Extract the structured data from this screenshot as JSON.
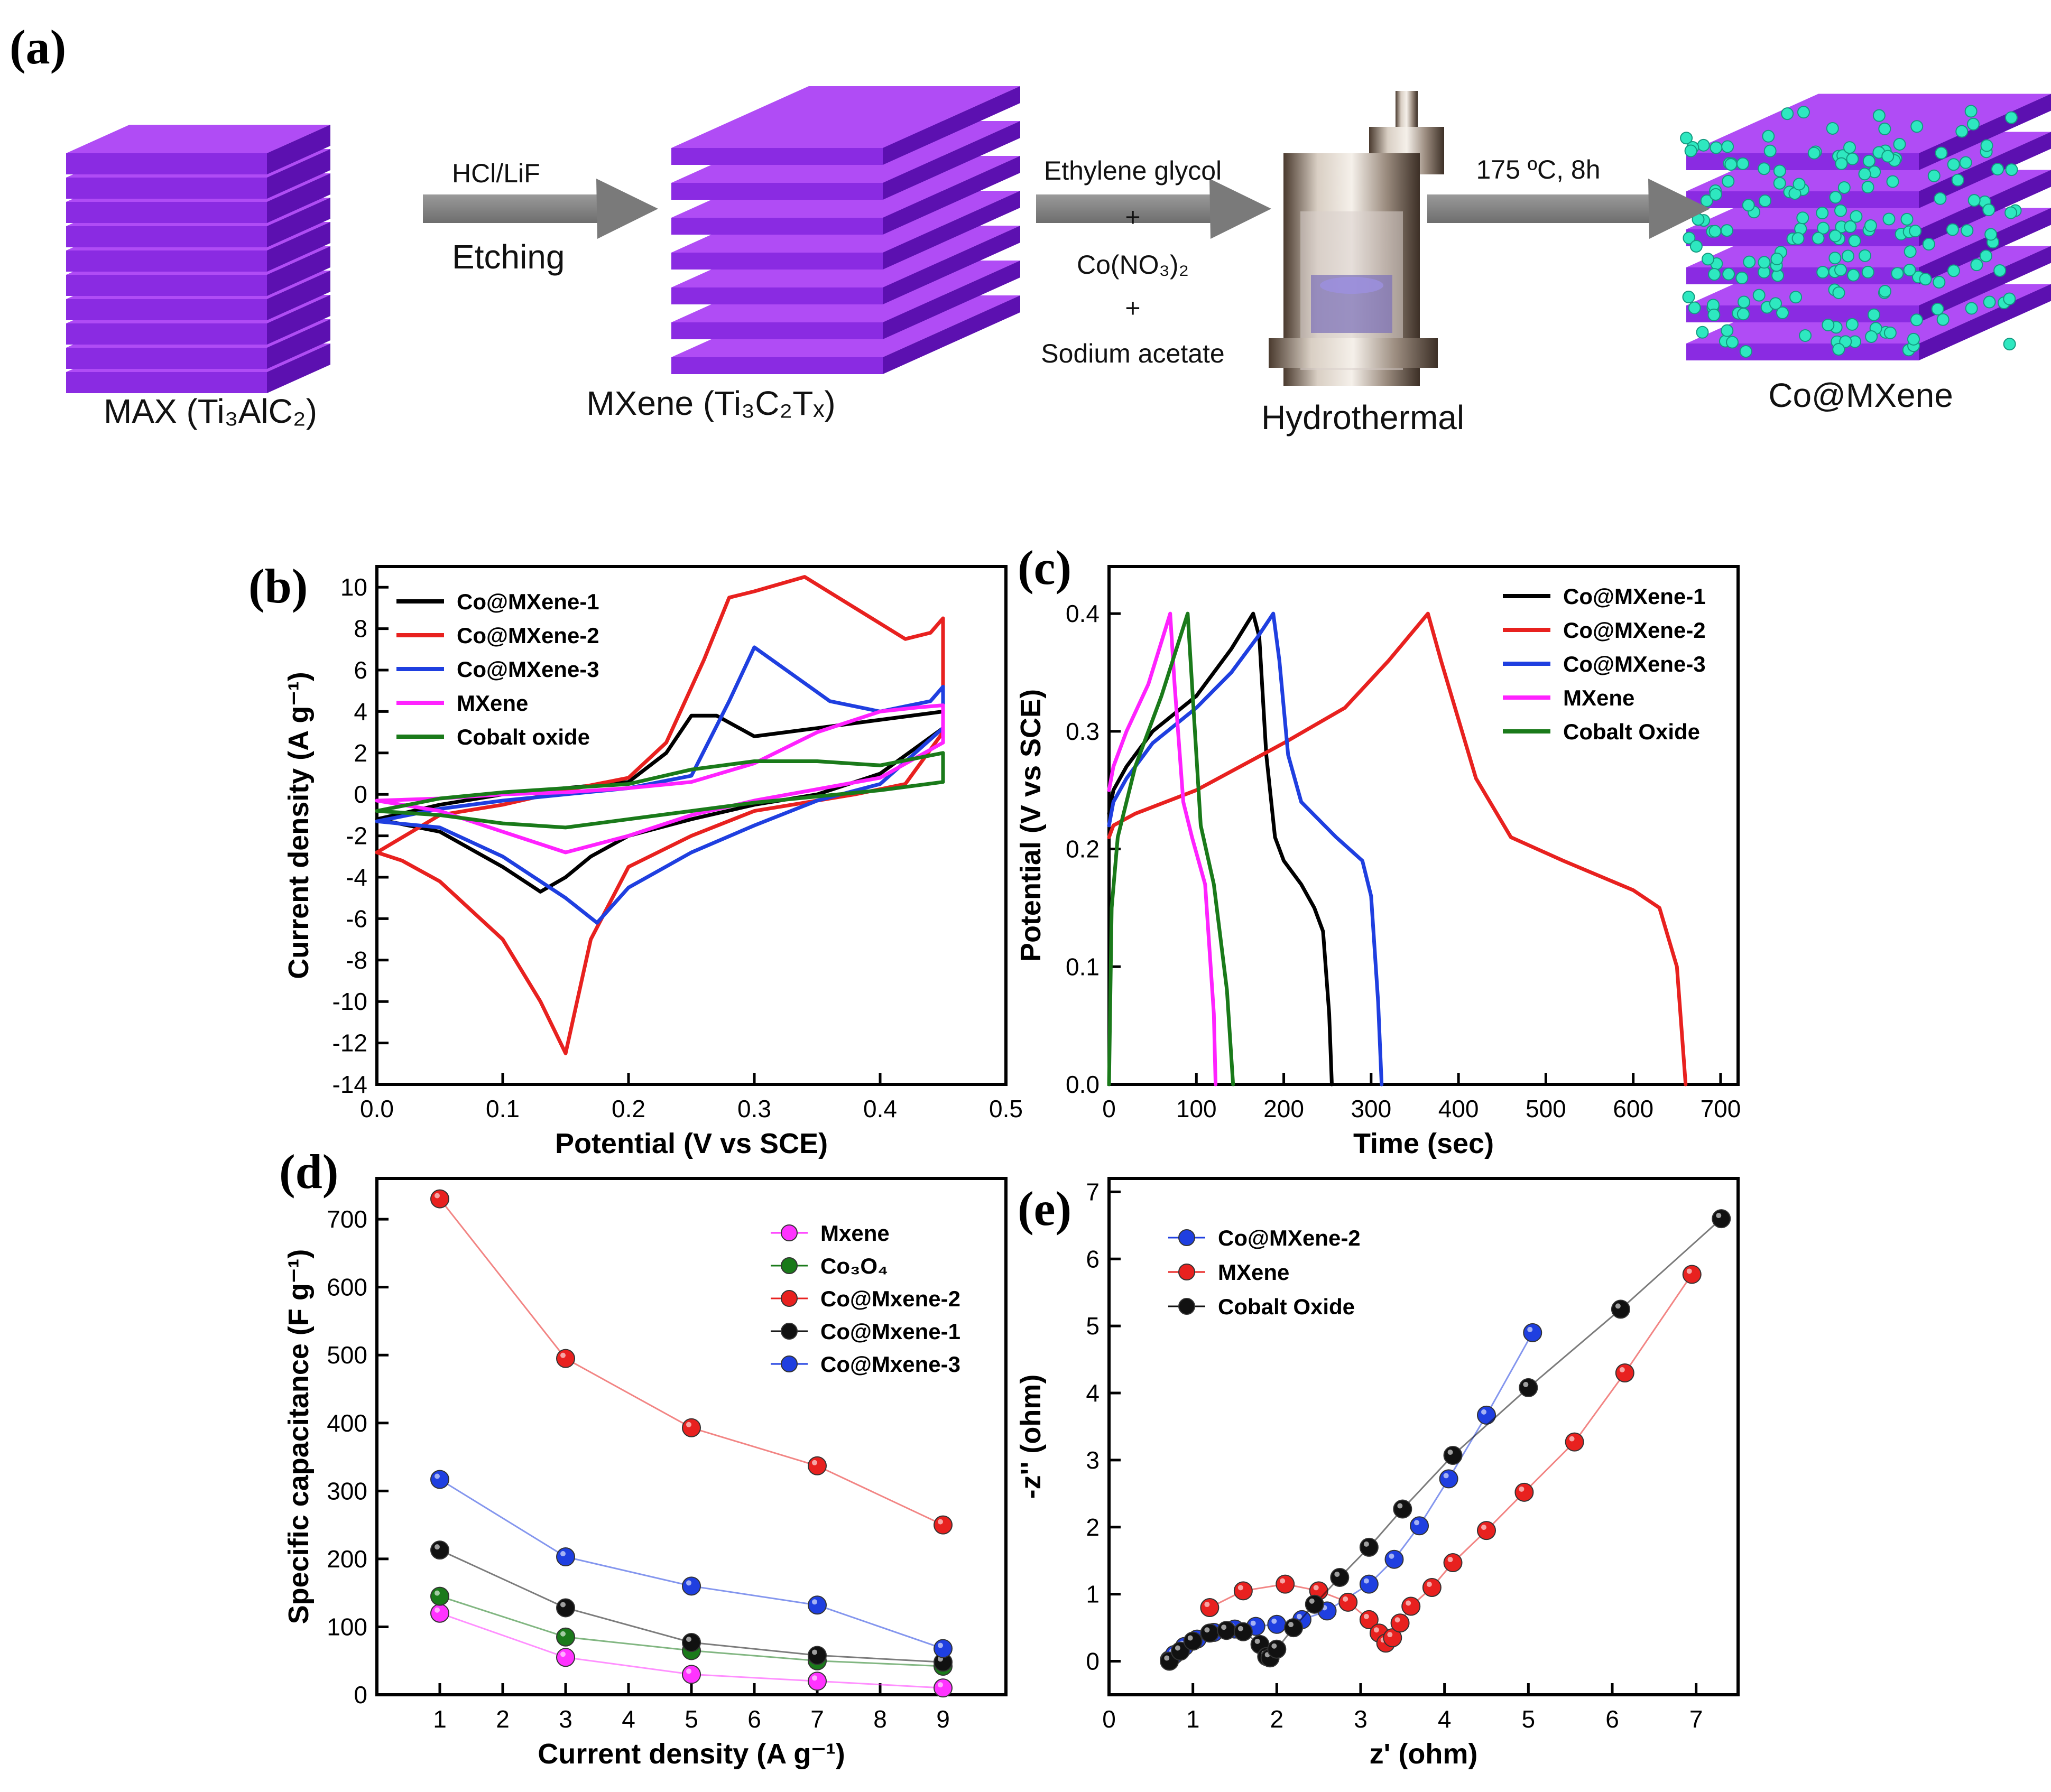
{
  "scheme": {
    "panel_label": "(a)",
    "stages": {
      "max": "MAX (Ti₃AlC₂)",
      "mxene": "MXene (Ti₃C₂Tₓ)",
      "hydro": "Hydrothermal",
      "product": "Co@MXene"
    },
    "arrow1": {
      "top": "HCl/LiF",
      "bottom": "Etching"
    },
    "arrow2": {
      "line1": "Ethylene glycol",
      "plus1": "+",
      "line2": "Co(NO₃)₂",
      "plus2": "+",
      "line3": "Sodium acetate"
    },
    "arrow3": {
      "top": "175 ºC, 8h"
    },
    "colors": {
      "mxene": "#8a2be2",
      "mxene_dark": "#5c10b0",
      "particle": "#2ee8c0",
      "arrow": "#808080"
    }
  },
  "chart_data": [
    {
      "panel": "(b)",
      "type": "line",
      "xlabel": "Potential (V vs SCE)",
      "ylabel": "Current density (A g⁻¹)",
      "xlim": [
        0.0,
        0.5
      ],
      "ylim": [
        -14,
        11
      ],
      "xticks": [
        "0.0",
        "0.1",
        "0.2",
        "0.3",
        "0.4",
        "0.5"
      ],
      "yticks": [
        "-14",
        "-12",
        "-10",
        "-8",
        "-6",
        "-4",
        "-2",
        "0",
        "2",
        "4",
        "6",
        "8",
        "10"
      ],
      "legend_position": "top-left",
      "series": [
        {
          "name": "Co@MXene-1",
          "color": "#000000",
          "x": [
            0.0,
            0.05,
            0.1,
            0.15,
            0.2,
            0.23,
            0.25,
            0.27,
            0.3,
            0.35,
            0.4,
            0.45,
            0.45,
            0.4,
            0.35,
            0.3,
            0.25,
            0.2,
            0.17,
            0.15,
            0.13,
            0.1,
            0.05,
            0.0
          ],
          "y": [
            -1.2,
            -0.5,
            0.0,
            0.3,
            0.6,
            2.0,
            3.8,
            3.8,
            2.8,
            3.2,
            3.6,
            4.0,
            3.2,
            1.0,
            0.0,
            -0.5,
            -1.2,
            -2.0,
            -3.0,
            -4.0,
            -4.7,
            -3.5,
            -1.8,
            -1.2
          ]
        },
        {
          "name": "Co@MXene-2",
          "color": "#e8211f",
          "x": [
            0.0,
            0.05,
            0.1,
            0.15,
            0.2,
            0.23,
            0.26,
            0.28,
            0.3,
            0.34,
            0.38,
            0.42,
            0.44,
            0.45,
            0.45,
            0.42,
            0.38,
            0.3,
            0.25,
            0.2,
            0.17,
            0.15,
            0.13,
            0.1,
            0.05,
            0.02,
            0.0
          ],
          "y": [
            -2.8,
            -1.0,
            -0.5,
            0.2,
            0.8,
            2.5,
            6.5,
            9.5,
            9.8,
            10.5,
            9.0,
            7.5,
            7.8,
            8.5,
            3.0,
            0.5,
            0.0,
            -0.8,
            -2.0,
            -3.5,
            -7.0,
            -12.5,
            -10.0,
            -7.0,
            -4.2,
            -3.2,
            -2.8
          ]
        },
        {
          "name": "Co@MXene-3",
          "color": "#1f3fe0",
          "x": [
            0.0,
            0.05,
            0.1,
            0.15,
            0.2,
            0.25,
            0.28,
            0.3,
            0.33,
            0.36,
            0.4,
            0.44,
            0.45,
            0.45,
            0.4,
            0.35,
            0.3,
            0.25,
            0.2,
            0.175,
            0.15,
            0.1,
            0.05,
            0.0
          ],
          "y": [
            -1.3,
            -0.7,
            -0.3,
            0.0,
            0.3,
            0.9,
            4.5,
            7.1,
            5.8,
            4.5,
            4.0,
            4.5,
            5.2,
            3.2,
            0.5,
            -0.3,
            -1.5,
            -2.8,
            -4.5,
            -6.2,
            -5.0,
            -3.0,
            -1.6,
            -1.3
          ]
        },
        {
          "name": "MXene",
          "color": "#ff22ff",
          "x": [
            0.0,
            0.05,
            0.1,
            0.15,
            0.2,
            0.25,
            0.3,
            0.35,
            0.4,
            0.43,
            0.45,
            0.45,
            0.4,
            0.3,
            0.25,
            0.2,
            0.15,
            0.1,
            0.05,
            0.0
          ],
          "y": [
            -0.3,
            -0.2,
            0.0,
            0.1,
            0.3,
            0.6,
            1.5,
            3.0,
            4.0,
            4.2,
            4.3,
            2.5,
            0.8,
            -0.3,
            -1.0,
            -2.0,
            -2.8,
            -1.8,
            -0.8,
            -0.3
          ]
        },
        {
          "name": "Cobalt oxide",
          "color": "#1a7a1a",
          "x": [
            0.0,
            0.05,
            0.1,
            0.15,
            0.2,
            0.25,
            0.3,
            0.35,
            0.4,
            0.45,
            0.45,
            0.4,
            0.3,
            0.25,
            0.2,
            0.15,
            0.1,
            0.05,
            0.0
          ],
          "y": [
            -0.8,
            -0.2,
            0.1,
            0.3,
            0.5,
            1.2,
            1.6,
            1.6,
            1.4,
            2.0,
            0.6,
            0.2,
            -0.4,
            -0.8,
            -1.2,
            -1.6,
            -1.4,
            -1.0,
            -0.8
          ]
        }
      ]
    },
    {
      "panel": "(c)",
      "type": "line",
      "xlabel": "Time (sec)",
      "ylabel": "Potential (V vs SCE)",
      "xlim": [
        0,
        720
      ],
      "ylim": [
        0.0,
        0.44
      ],
      "xticks": [
        "0",
        "100",
        "200",
        "300",
        "400",
        "500",
        "600",
        "700"
      ],
      "yticks": [
        "0.0",
        "0.1",
        "0.2",
        "0.3",
        "0.4"
      ],
      "legend_position": "top-right",
      "series": [
        {
          "name": "Co@MXene-1",
          "color": "#000000",
          "x": [
            0,
            5,
            20,
            50,
            100,
            140,
            165,
            172,
            180,
            190,
            200,
            220,
            235,
            245,
            252,
            255
          ],
          "y": [
            0.23,
            0.25,
            0.27,
            0.3,
            0.33,
            0.37,
            0.4,
            0.38,
            0.28,
            0.21,
            0.19,
            0.17,
            0.15,
            0.13,
            0.06,
            0.0
          ]
        },
        {
          "name": "Co@MXene-2",
          "color": "#e8211f",
          "x": [
            0,
            5,
            30,
            100,
            200,
            270,
            320,
            365,
            380,
            420,
            460,
            520,
            600,
            630,
            650,
            655,
            660
          ],
          "y": [
            0.21,
            0.22,
            0.23,
            0.25,
            0.29,
            0.32,
            0.36,
            0.4,
            0.36,
            0.26,
            0.21,
            0.19,
            0.165,
            0.15,
            0.1,
            0.05,
            0.0
          ]
        },
        {
          "name": "Co@MXene-3",
          "color": "#1f3fe0",
          "x": [
            0,
            5,
            20,
            50,
            100,
            140,
            170,
            188,
            195,
            205,
            220,
            260,
            290,
            300,
            308,
            312
          ],
          "y": [
            0.22,
            0.24,
            0.26,
            0.29,
            0.32,
            0.35,
            0.38,
            0.4,
            0.36,
            0.28,
            0.24,
            0.21,
            0.19,
            0.16,
            0.07,
            0.0
          ]
        },
        {
          "name": "MXene",
          "color": "#ff22ff",
          "x": [
            0,
            5,
            20,
            45,
            70,
            75,
            85,
            95,
            110,
            120,
            122
          ],
          "y": [
            0.25,
            0.27,
            0.3,
            0.34,
            0.4,
            0.34,
            0.24,
            0.21,
            0.17,
            0.06,
            0.0
          ]
        },
        {
          "name": "Cobalt Oxide",
          "color": "#1a7a1a",
          "x": [
            0,
            3,
            10,
            30,
            60,
            90,
            95,
            105,
            120,
            135,
            142
          ],
          "y": [
            0.0,
            0.15,
            0.21,
            0.27,
            0.33,
            0.4,
            0.34,
            0.22,
            0.17,
            0.08,
            0.0
          ]
        }
      ]
    },
    {
      "panel": "(d)",
      "type": "line",
      "xlabel": "Current density (A g⁻¹)",
      "ylabel": "Specific capacitance (F g⁻¹)",
      "xlim": [
        0,
        10
      ],
      "ylim": [
        0,
        760
      ],
      "xticks": [
        "1",
        "2",
        "3",
        "4",
        "5",
        "6",
        "7",
        "8",
        "9"
      ],
      "yticks": [
        "0",
        "100",
        "200",
        "300",
        "400",
        "500",
        "600",
        "700"
      ],
      "legend_position": "top-right",
      "markers": true,
      "series": [
        {
          "name": "Mxene",
          "color": "#ff33ff",
          "x": [
            1,
            3,
            5,
            7,
            9
          ],
          "y": [
            120,
            55,
            30,
            20,
            10
          ]
        },
        {
          "name": "Co₃O₄",
          "color": "#1a7a1a",
          "x": [
            1,
            3,
            5,
            7,
            9
          ],
          "y": [
            145,
            85,
            65,
            50,
            42
          ]
        },
        {
          "name": "Co@Mxene-2",
          "color": "#e8211f",
          "x": [
            1,
            3,
            5,
            7,
            9
          ],
          "y": [
            730,
            495,
            393,
            337,
            250
          ]
        },
        {
          "name": "Co@Mxene-1",
          "color": "#111111",
          "x": [
            1,
            3,
            5,
            7,
            9
          ],
          "y": [
            213,
            128,
            77,
            58,
            48
          ]
        },
        {
          "name": "Co@Mxene-3",
          "color": "#1f3fe0",
          "x": [
            1,
            3,
            5,
            7,
            9
          ],
          "y": [
            317,
            203,
            160,
            132,
            68
          ]
        }
      ]
    },
    {
      "panel": "(e)",
      "type": "line",
      "xlabel": "z' (ohm)",
      "ylabel": "-z'' (ohm)",
      "xlim": [
        0,
        7.5
      ],
      "ylim": [
        -0.5,
        7.2
      ],
      "xticks": [
        "0",
        "1",
        "2",
        "3",
        "4",
        "5",
        "6",
        "7"
      ],
      "yticks": [
        "0",
        "1",
        "2",
        "3",
        "4",
        "5",
        "6",
        "7"
      ],
      "legend_position": "top-left",
      "markers": true,
      "series": [
        {
          "name": "Co@MXene-2",
          "color": "#1f3fe0",
          "x": [
            0.72,
            0.78,
            0.9,
            1.05,
            1.25,
            1.5,
            1.75,
            2.0,
            2.3,
            2.6,
            3.1,
            3.4,
            3.7,
            4.05,
            4.5,
            5.05
          ],
          "y": [
            0.02,
            0.1,
            0.22,
            0.33,
            0.43,
            0.48,
            0.52,
            0.55,
            0.62,
            0.75,
            1.15,
            1.52,
            2.02,
            2.72,
            3.67,
            4.9
          ]
        },
        {
          "name": "MXene",
          "color": "#e8211f",
          "x": [
            1.2,
            1.6,
            2.1,
            2.5,
            2.85,
            3.1,
            3.22,
            3.3,
            3.38,
            3.47,
            3.6,
            3.85,
            4.1,
            4.5,
            4.95,
            5.55,
            6.15,
            6.95
          ],
          "y": [
            0.8,
            1.05,
            1.15,
            1.05,
            0.88,
            0.62,
            0.42,
            0.27,
            0.35,
            0.57,
            0.82,
            1.1,
            1.47,
            1.95,
            2.52,
            3.27,
            4.3,
            5.77
          ]
        },
        {
          "name": "Cobalt Oxide",
          "color": "#111111",
          "x": [
            0.72,
            0.85,
            1.0,
            1.2,
            1.4,
            1.6,
            1.8,
            1.88,
            1.92,
            2.0,
            2.2,
            2.45,
            2.75,
            3.1,
            3.5,
            4.1,
            5.0,
            6.1,
            7.3
          ],
          "y": [
            0.0,
            0.15,
            0.3,
            0.42,
            0.46,
            0.44,
            0.25,
            0.07,
            0.05,
            0.18,
            0.5,
            0.85,
            1.25,
            1.7,
            2.27,
            3.07,
            4.08,
            5.25,
            6.6
          ]
        }
      ]
    }
  ]
}
